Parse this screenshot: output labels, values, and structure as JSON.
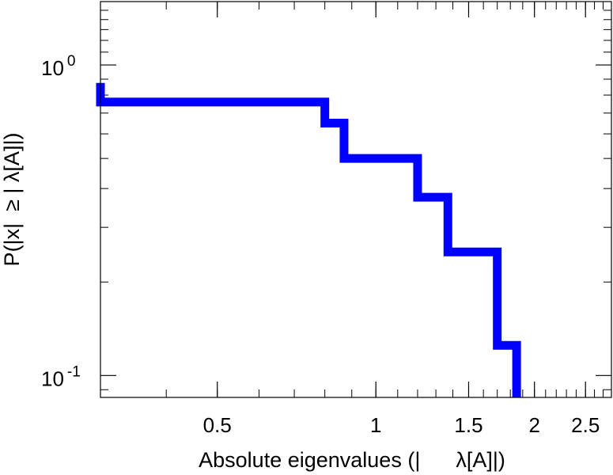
{
  "chart_data": {
    "type": "line",
    "title": "",
    "xlabel": "Absolute eigenvalues (|      λ[A]|)",
    "ylabel": "P(|x|  ≥ | λ[A]|)",
    "xscale": "log",
    "yscale": "log",
    "xlim": [
      0.3,
      2.8
    ],
    "ylim": [
      0.085,
      1.6
    ],
    "grid": false,
    "x_ticks": [
      {
        "value": 0.5,
        "label": "0.5"
      },
      {
        "value": 1,
        "label": "1"
      },
      {
        "value": 1.5,
        "label": "1.5"
      },
      {
        "value": 2,
        "label": "2"
      },
      {
        "value": 2.5,
        "label": "2.5"
      }
    ],
    "y_ticks": [
      {
        "value": 1,
        "base": "10",
        "exp": "0"
      },
      {
        "value": 0.1,
        "base": "10",
        "exp": "-1"
      }
    ],
    "series": [
      {
        "color": "#0000ff",
        "style": "step",
        "points": [
          [
            0.3,
            0.875
          ],
          [
            0.3,
            0.76
          ],
          [
            0.8,
            0.76
          ],
          [
            0.8,
            0.65
          ],
          [
            0.87,
            0.65
          ],
          [
            0.87,
            0.5
          ],
          [
            1.2,
            0.5
          ],
          [
            1.2,
            0.375
          ],
          [
            1.37,
            0.375
          ],
          [
            1.37,
            0.25
          ],
          [
            1.7,
            0.25
          ],
          [
            1.7,
            0.125
          ],
          [
            1.85,
            0.125
          ],
          [
            1.85,
            0.085
          ]
        ]
      }
    ]
  }
}
